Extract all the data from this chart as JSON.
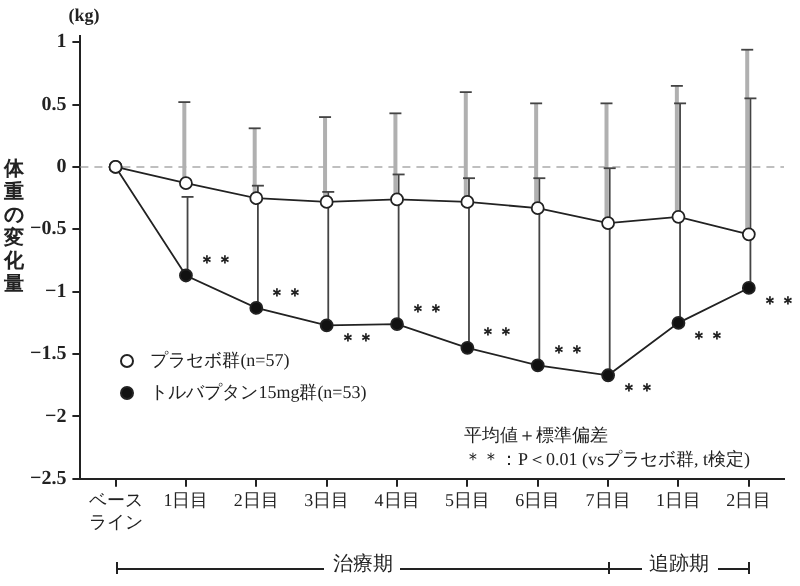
{
  "chart_data": {
    "type": "line",
    "ylabel": "体重の変化量",
    "categories": [
      "ベースライン",
      "1日目",
      "2日目",
      "3日目",
      "4日目",
      "5日目",
      "6日目",
      "7日目",
      "1日目",
      "2日目"
    ],
    "series": [
      {
        "name": "プラセボ群(n=57)",
        "color": "#ffffff",
        "values": [
          0,
          -0.13,
          -0.25,
          -0.28,
          -0.26,
          -0.28,
          -0.33,
          -0.45,
          -0.4,
          -0.54
        ],
        "errors": [
          null,
          [
            -0.13,
            0.52
          ],
          [
            -0.25,
            0.31
          ],
          [
            -0.28,
            0.4
          ],
          [
            -0.26,
            0.43
          ],
          [
            -0.28,
            0.6
          ],
          [
            -0.33,
            0.51
          ],
          [
            -0.45,
            0.51
          ],
          [
            -0.4,
            0.65
          ],
          [
            -0.54,
            0.94
          ]
        ]
      },
      {
        "name": "トルバプタン15mg群(n=53)",
        "color": "#111111",
        "values": [
          0,
          -0.87,
          -1.13,
          -1.27,
          -1.26,
          -1.45,
          -1.59,
          -1.67,
          -1.25,
          -0.97
        ],
        "errors": [
          null,
          [
            -0.87,
            -0.24
          ],
          [
            -1.13,
            -0.15
          ],
          [
            -1.27,
            -0.2
          ],
          [
            -1.26,
            -0.06
          ],
          [
            -1.45,
            -0.09
          ],
          [
            -1.59,
            -0.09
          ],
          [
            -1.67,
            -0.01
          ],
          [
            -1.25,
            0.51
          ],
          [
            -0.97,
            0.55
          ]
        ]
      }
    ],
    "ylim": [
      -2.5,
      1.05
    ],
    "yticks": [
      -2.5,
      -2,
      -1.5,
      -1,
      -0.5,
      0,
      0.5,
      1
    ],
    "grid": false,
    "legend": "bottom left",
    "marker": "circle",
    "line_style": "solid",
    "ref_lines": [
      {
        "axis": "y",
        "value": 0,
        "color": "#aaaaaa",
        "line_style": "dashed"
      }
    ],
    "annotations": [
      "(kg)",
      "平均値＋標準偏差",
      "＊＊：P＜0.01 (vsプラセボ群, t検定)",
      "治療期",
      "追跡期",
      "＊＊",
      "＊＊",
      "＊＊",
      "＊＊",
      "＊＊",
      "＊＊",
      "＊＊",
      "＊＊",
      "＊＊"
    ]
  }
}
